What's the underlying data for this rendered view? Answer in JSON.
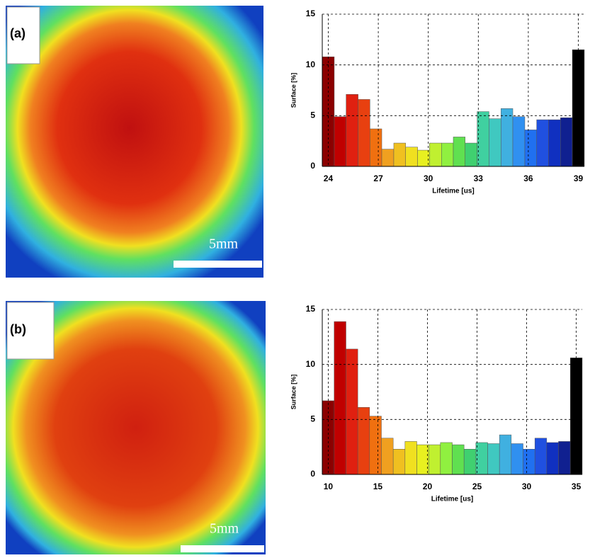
{
  "panels": [
    {
      "label": "(a)",
      "scale_bar": "5mm"
    },
    {
      "label": "(b)",
      "scale_bar": "5mm"
    }
  ],
  "chart_data": [
    {
      "type": "histogram",
      "x_label": "Lifetime [us]",
      "y_label": "Surface [%]",
      "bins": [
        23.64,
        24.36,
        25.07,
        25.79,
        26.5,
        27.21,
        27.93,
        28.64,
        29.36,
        30.07,
        30.79,
        31.5,
        32.21,
        32.93,
        33.64,
        34.36,
        35.07,
        35.79,
        36.5,
        37.21,
        37.93,
        38.64,
        39.36
      ],
      "values": [
        10.8,
        4.9,
        7.1,
        6.6,
        3.7,
        1.7,
        2.3,
        1.9,
        1.6,
        2.3,
        2.3,
        2.9,
        2.3,
        5.4,
        4.7,
        5.7,
        4.9,
        3.6,
        4.6,
        4.6,
        4.8,
        11.5
      ],
      "colors": [
        "#8b0000",
        "#c00000",
        "#e02010",
        "#e84010",
        "#f07010",
        "#f0a020",
        "#f0c020",
        "#f0e020",
        "#e8f020",
        "#c0f030",
        "#90f040",
        "#60e050",
        "#40d070",
        "#40d0a0",
        "#40c8c0",
        "#40b0e0",
        "#3090f0",
        "#2070f0",
        "#2050e0",
        "#1030c0",
        "#102090",
        "#000000"
      ],
      "xlim": [
        23.64,
        39.36
      ],
      "ylim": [
        0,
        15
      ],
      "xticks": [
        24,
        27,
        30,
        33,
        36,
        39
      ],
      "yticks": [
        0,
        5,
        10,
        15
      ],
      "grid": true
    },
    {
      "type": "histogram",
      "x_label": "Lifetime [us]",
      "y_label": "Surface [%]",
      "bins": [
        9.4,
        10.6,
        11.79,
        12.98,
        14.17,
        15.36,
        16.55,
        17.74,
        18.93,
        20.12,
        21.31,
        22.5,
        23.69,
        24.88,
        26.07,
        27.26,
        28.45,
        29.64,
        30.83,
        32.02,
        33.21,
        34.4,
        35.6
      ],
      "values": [
        6.7,
        13.9,
        11.4,
        6.1,
        5.3,
        3.3,
        2.3,
        3.0,
        2.7,
        2.7,
        2.9,
        2.7,
        2.3,
        2.9,
        2.8,
        3.6,
        2.8,
        2.3,
        3.3,
        2.9,
        3.0,
        10.6
      ],
      "colors": [
        "#8b0000",
        "#c00000",
        "#e02010",
        "#e84010",
        "#f07010",
        "#f0a020",
        "#f0c020",
        "#f0e020",
        "#e8f020",
        "#c0f030",
        "#90f040",
        "#60e050",
        "#40d070",
        "#40d0a0",
        "#40c8c0",
        "#40b0e0",
        "#3090f0",
        "#2070f0",
        "#2050e0",
        "#1030c0",
        "#102090",
        "#000000"
      ],
      "xlim": [
        9.4,
        35.6
      ],
      "ylim": [
        0,
        15
      ],
      "xticks": [
        10,
        15,
        20,
        25,
        30,
        35
      ],
      "yticks": [
        0,
        5,
        10,
        15
      ],
      "grid": true
    }
  ]
}
